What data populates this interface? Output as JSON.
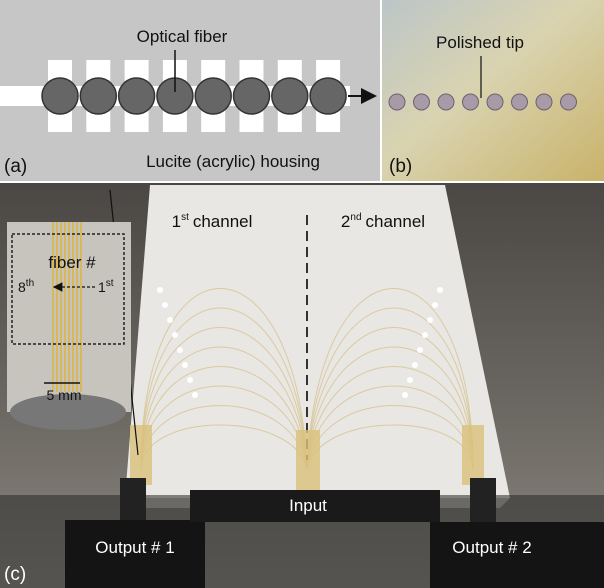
{
  "panel_a": {
    "tag": "(a)",
    "fiber_label": "Optical fiber",
    "housing_label": "Lucite (acrylic) housing"
  },
  "panel_b": {
    "tag": "(b)",
    "tip_label": "Polished tip"
  },
  "panel_c": {
    "tag": "(c)",
    "channel_1": {
      "num": "1",
      "sup": "st",
      "label": "channel"
    },
    "channel_2": {
      "num": "2",
      "sup": "nd",
      "label": "channel"
    },
    "inset": {
      "title": "fiber #",
      "left": {
        "num": "8",
        "sup": "th"
      },
      "right": {
        "num": "1",
        "sup": "st"
      },
      "scale": "5 mm"
    },
    "input": "Input",
    "output_1": "Output # 1",
    "output_2": "Output # 2"
  }
}
